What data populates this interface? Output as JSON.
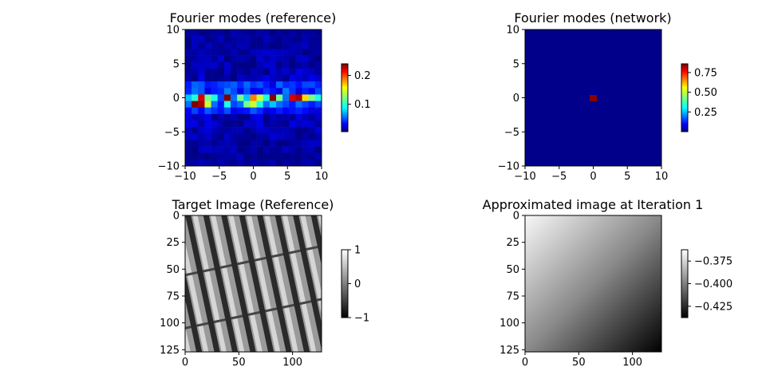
{
  "chart_data": [
    {
      "type": "heatmap",
      "title": "Fourier modes (reference)",
      "colormap": "jet",
      "xlim": [
        -10,
        10
      ],
      "ylim": [
        -10,
        10
      ],
      "x_ticks": [
        "−10",
        "−5",
        "0",
        "5",
        "10"
      ],
      "y_ticks": [
        "10",
        "5",
        "0",
        "−5",
        "−10"
      ],
      "colorbar": {
        "range": [
          0.005,
          0.24
        ],
        "tick_values": [
          0.1,
          0.2
        ],
        "tick_labels": [
          "0.1",
          "0.2"
        ]
      },
      "description_values": {
        "peak_row_y": 0,
        "peaks": [
          {
            "x": -8,
            "y": -0.5,
            "value": 0.24
          },
          {
            "x": -7,
            "y": -0.5,
            "value": 0.23
          },
          {
            "x": -6,
            "y": 0.5,
            "value": 0.2
          },
          {
            "x": 7,
            "y": 0.5,
            "value": 0.22
          },
          {
            "x": 8,
            "y": 0.5,
            "value": 0.23
          },
          {
            "x": 0,
            "y": 0.5,
            "value": 0.18
          },
          {
            "x": -3,
            "y": 0.5,
            "value": 0.24
          },
          {
            "x": 3,
            "y": 0.5,
            "value": 0.24
          }
        ]
      }
    },
    {
      "type": "heatmap",
      "title": "Fourier modes (network)",
      "colormap": "jet",
      "xlim": [
        -10,
        10
      ],
      "ylim": [
        -10,
        10
      ],
      "x_ticks": [
        "−10",
        "−5",
        "0",
        "5",
        "10"
      ],
      "y_ticks": [
        "10",
        "5",
        "0",
        "−5",
        "−10"
      ],
      "colorbar": {
        "range": [
          0.0,
          0.86
        ],
        "tick_values": [
          0.25,
          0.5,
          0.75
        ],
        "tick_labels": [
          "0.25",
          "0.50",
          "0.75"
        ]
      },
      "description_values": {
        "peaks": [
          {
            "x": 0,
            "y": 0,
            "value": 0.86
          }
        ]
      }
    },
    {
      "type": "heatmap",
      "title": "Target Image (Reference)",
      "colormap": "gray",
      "xlim": [
        0,
        127
      ],
      "ylim": [
        127,
        0
      ],
      "x_ticks": [
        "0",
        "50",
        "100"
      ],
      "y_ticks": [
        "0",
        "25",
        "50",
        "75",
        "100",
        "125"
      ],
      "colorbar": {
        "range": [
          -1,
          1
        ],
        "tick_values": [
          -1,
          0,
          1
        ],
        "tick_labels": [
          "−1",
          "0",
          "1"
        ]
      }
    },
    {
      "type": "heatmap",
      "title": "Approximated image at Iteration 1",
      "colormap": "gray",
      "xlim": [
        0,
        127
      ],
      "ylim": [
        127,
        0
      ],
      "x_ticks": [
        "0",
        "50",
        "100"
      ],
      "y_ticks": [
        "0",
        "25",
        "50",
        "75",
        "100",
        "125"
      ],
      "colorbar": {
        "range": [
          -0.4375,
          -0.3625
        ],
        "tick_values": [
          -0.375,
          -0.4,
          -0.425
        ],
        "tick_labels": [
          "−0.375",
          "−0.400",
          "−0.425"
        ]
      }
    }
  ]
}
